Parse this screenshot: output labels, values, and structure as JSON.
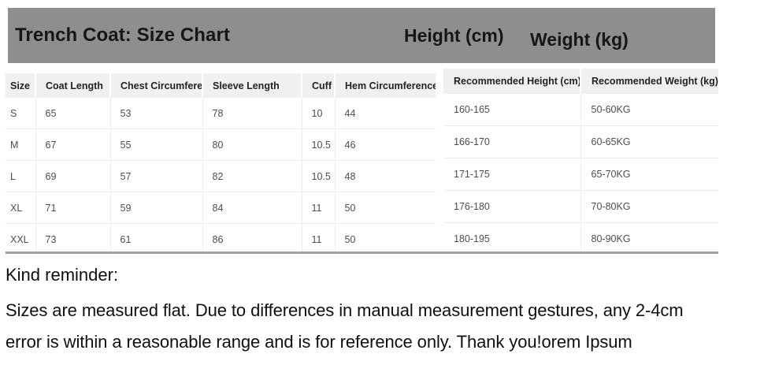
{
  "title_bar": {
    "title": "Trench Coat: Size Chart",
    "height_label": "Height (cm)",
    "weight_label": "Weight (kg)"
  },
  "size_table": {
    "headers": [
      "Size",
      "Coat Length",
      "Chest Circumference",
      "Sleeve Length",
      "Cuff",
      "Hem Circumference"
    ],
    "rows": [
      [
        "S",
        "65",
        "53",
        "78",
        "10",
        "44"
      ],
      [
        "M",
        "67",
        "55",
        "80",
        "10.5",
        "46"
      ],
      [
        "L",
        "69",
        "57",
        "82",
        "10.5",
        "48"
      ],
      [
        "XL",
        "71",
        "59",
        "84",
        "11",
        "50"
      ],
      [
        "XXL",
        "73",
        "61",
        "86",
        "11",
        "50"
      ]
    ]
  },
  "recommendation_table": {
    "headers": [
      "Recommended Height (cm)",
      "Recommended Weight (kg)"
    ],
    "rows": [
      [
        "160-165",
        "50-60KG"
      ],
      [
        "166-170",
        "60-65KG"
      ],
      [
        "171-175",
        "65-70KG"
      ],
      [
        "176-180",
        "70-80KG"
      ],
      [
        "180-195",
        "80-90KG"
      ]
    ]
  },
  "reminder": {
    "heading": "Kind reminder:",
    "line1": "Sizes are measured flat. Due to differences in manual measurement gestures, any 2-4cm",
    "line2": "error is within a reasonable range and is for reference only. Thank you!orem Ipsum"
  },
  "colors": {
    "header_bar_bg": "#8e8e8e",
    "header_bar_text": "#161616",
    "table_header_bg": "#f0f0f1",
    "table_grid": "#ececec",
    "table_body_text": "#4d4d4d",
    "bottom_rule": "#a0a0a0",
    "reminder_text": "#0f0f0f"
  }
}
